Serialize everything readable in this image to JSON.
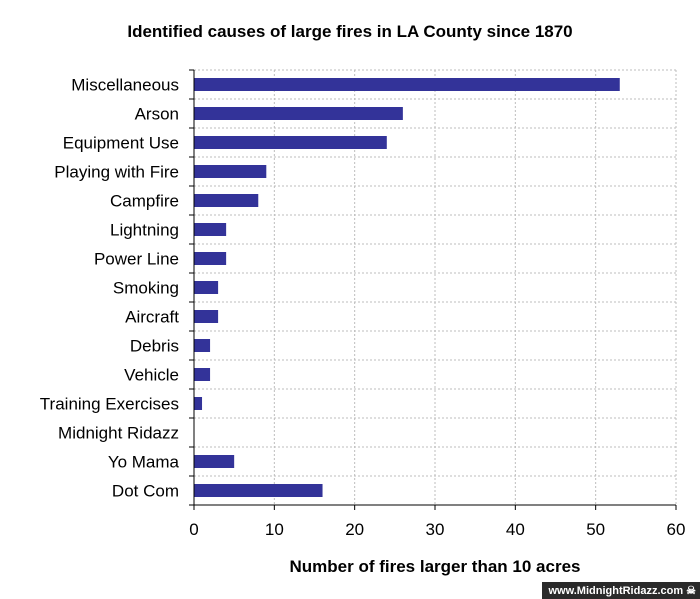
{
  "chart_data": {
    "type": "bar",
    "orientation": "horizontal",
    "title": "Identified causes of large fires in LA County since 1870",
    "xlabel": "Number of fires larger than 10 acres",
    "ylabel": "",
    "categories": [
      "Miscellaneous",
      "Arson",
      "Equipment Use",
      "Playing with Fire",
      "Campfire",
      "Lightning",
      "Power Line",
      "Smoking",
      "Aircraft",
      "Debris",
      "Vehicle",
      "Training Exercises",
      "Midnight Ridazz",
      "Yo Mama",
      "Dot Com"
    ],
    "values": [
      53,
      26,
      24,
      9,
      8,
      4,
      4,
      3,
      3,
      2,
      2,
      1,
      0,
      5,
      16
    ],
    "xlim": [
      0,
      60
    ],
    "xticks": [
      "0",
      "10",
      "20",
      "30",
      "40",
      "50",
      "60"
    ],
    "grid": true,
    "bar_color": "#333399",
    "legend": "none"
  },
  "watermark": {
    "text": "www.MidnightRidazz.com",
    "icon": "skull-icon"
  }
}
